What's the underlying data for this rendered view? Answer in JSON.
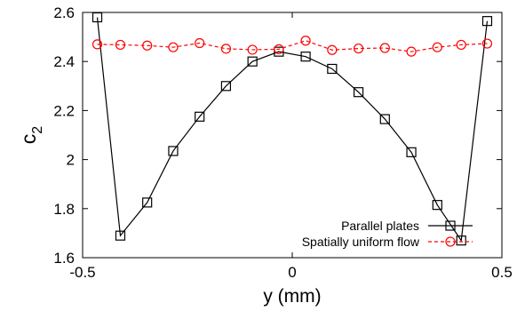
{
  "chart_data": {
    "type": "line",
    "title": "",
    "xlabel": "y (mm)",
    "ylabel": "c",
    "ylabel_subscript": "2",
    "xlim": [
      -0.5,
      0.5
    ],
    "ylim": [
      1.6,
      2.6
    ],
    "xticks": [
      -0.5,
      0,
      0.5
    ],
    "xtick_labels": [
      "-0.5",
      "0",
      "0.5"
    ],
    "yticks": [
      1.6,
      1.8,
      2,
      2.2,
      2.4,
      2.6
    ],
    "ytick_labels": [
      "1.6",
      "1.8",
      "2",
      "2.2",
      "2.4",
      "2.6"
    ],
    "grid": false,
    "legend_position": "bottom-right",
    "series": [
      {
        "name": "Parallel plates",
        "color": "#000000",
        "marker": "square",
        "line": "solid",
        "x": [
          -0.465,
          -0.41,
          -0.346,
          -0.284,
          -0.221,
          -0.158,
          -0.095,
          -0.032,
          0.032,
          0.095,
          0.158,
          0.221,
          0.284,
          0.346,
          0.403,
          0.465
        ],
        "y": [
          2.58,
          1.69,
          1.825,
          2.035,
          2.175,
          2.3,
          2.4,
          2.44,
          2.42,
          2.37,
          2.275,
          2.165,
          2.03,
          1.815,
          1.67,
          2.565
        ]
      },
      {
        "name": "Spatially uniform flow",
        "color": "#ff0000",
        "marker": "circle",
        "line": "dashed",
        "x": [
          -0.465,
          -0.41,
          -0.346,
          -0.284,
          -0.221,
          -0.158,
          -0.095,
          -0.032,
          0.032,
          0.095,
          0.158,
          0.221,
          0.284,
          0.346,
          0.403,
          0.465
        ],
        "y": [
          2.47,
          2.468,
          2.465,
          2.458,
          2.475,
          2.452,
          2.448,
          2.45,
          2.485,
          2.447,
          2.453,
          2.455,
          2.44,
          2.458,
          2.468,
          2.473
        ]
      }
    ]
  }
}
